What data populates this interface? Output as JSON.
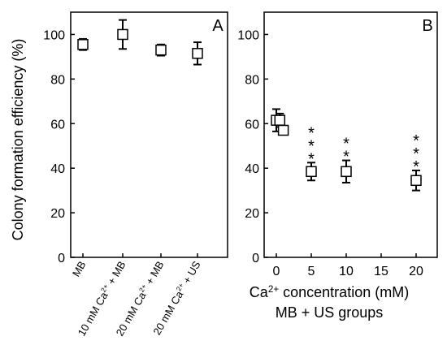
{
  "chart_data": [
    {
      "panel": "A",
      "type": "scatter",
      "marker": "open-square",
      "ylabel": "Colony formation efficiency (%)",
      "xlabel": "",
      "ylim": [
        0,
        110
      ],
      "yticks": [
        0,
        20,
        40,
        60,
        80,
        100
      ],
      "categories": [
        "MB",
        "10 mM Ca2+ + MB",
        "20 mM Ca2+ + MB",
        "20 mM Ca2+ + US"
      ],
      "category_labels": [
        {
          "prefix": "MB",
          "sup": "",
          "suffix": ""
        },
        {
          "prefix": "10 mM Ca",
          "sup": "2+",
          "suffix": " + MB"
        },
        {
          "prefix": "20 mM Ca",
          "sup": "2+",
          "suffix": " + MB"
        },
        {
          "prefix": "20 mM Ca",
          "sup": "2+",
          "suffix": " + US"
        }
      ],
      "values": [
        95.5,
        100,
        93,
        91.5
      ],
      "errors": [
        2.5,
        6.5,
        2.5,
        5
      ]
    },
    {
      "panel": "B",
      "type": "scatter",
      "marker": "open-square",
      "xlabel_prefix": "Ca",
      "xlabel_sup": "2+",
      "xlabel_suffix": " concentration (mM)",
      "xlabel2": "MB + US groups",
      "ylabel": "",
      "ylim": [
        0,
        110
      ],
      "yticks": [
        0,
        20,
        40,
        60,
        80,
        100
      ],
      "xticks": [
        0,
        5,
        10,
        15,
        20
      ],
      "points": [
        {
          "x": 0,
          "y": 61.5,
          "err": 5
        },
        {
          "x": 0.5,
          "y": 61.5,
          "err": 3
        },
        {
          "x": 1,
          "y": 57,
          "err": 2
        },
        {
          "x": 5,
          "y": 38.5,
          "err": 4,
          "sig": "***"
        },
        {
          "x": 10,
          "y": 38.5,
          "err": 5,
          "sig": "**"
        },
        {
          "x": 20,
          "y": 34.5,
          "err": 4.5,
          "sig": "***"
        }
      ]
    }
  ]
}
